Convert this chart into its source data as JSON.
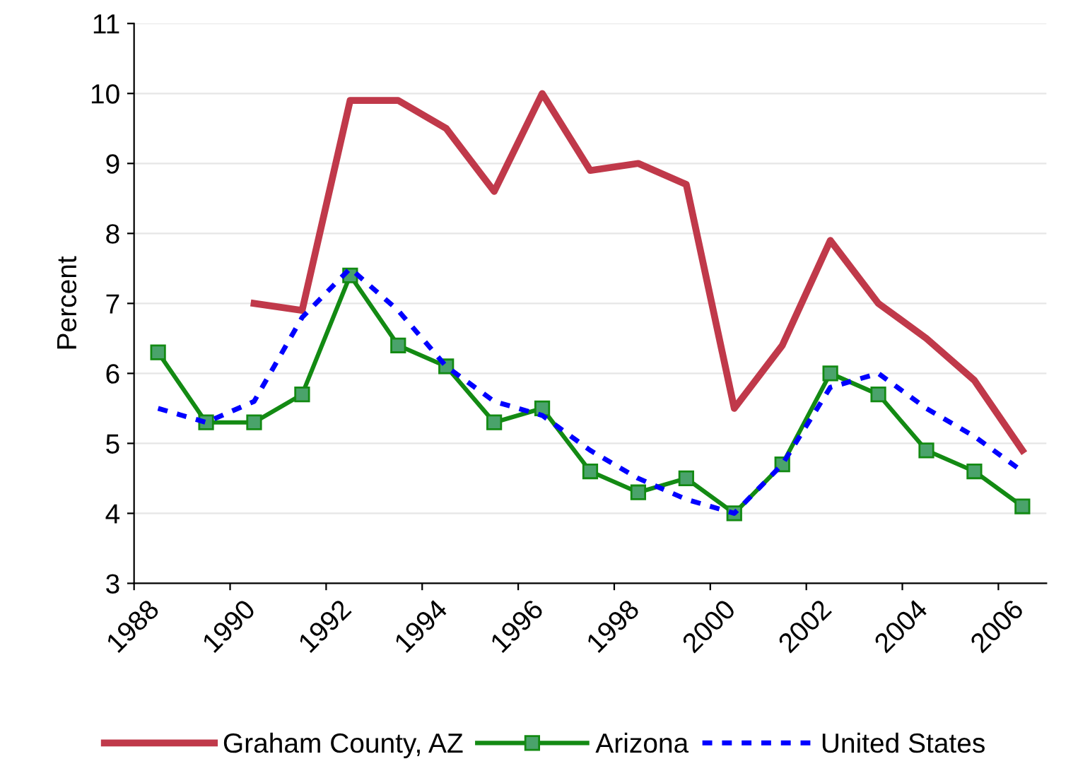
{
  "chart_data": {
    "type": "line",
    "ylabel": "Percent",
    "x": [
      1988.5,
      1989.5,
      1990.5,
      1991.5,
      1992.5,
      1993.5,
      1994.5,
      1995.5,
      1996.5,
      1997.5,
      1998.5,
      1999.5,
      2000.5,
      2001.5,
      2002.5,
      2003.5,
      2004.5,
      2005.5,
      2006.5
    ],
    "series": [
      {
        "name": "Graham County, AZ",
        "color": "#c0394a",
        "line_style": "solid",
        "marker": "none",
        "values": [
          null,
          null,
          7.0,
          6.9,
          9.9,
          9.9,
          9.5,
          8.6,
          10.0,
          8.9,
          9.0,
          8.7,
          5.5,
          6.4,
          7.9,
          7.0,
          6.5,
          5.9,
          4.9
        ]
      },
      {
        "name": "Arizona",
        "color": "#138a13",
        "line_style": "solid",
        "marker": "square",
        "values": [
          6.3,
          5.3,
          5.3,
          5.7,
          7.4,
          6.4,
          6.1,
          5.3,
          5.5,
          4.6,
          4.3,
          4.5,
          4.0,
          4.7,
          6.0,
          5.7,
          4.9,
          4.6,
          4.1
        ]
      },
      {
        "name": "United States",
        "color": "#0000ff",
        "line_style": "dashed",
        "marker": "none",
        "values": [
          5.5,
          5.3,
          5.6,
          6.8,
          7.5,
          6.9,
          6.1,
          5.6,
          5.4,
          4.9,
          4.5,
          4.2,
          4.0,
          4.7,
          5.8,
          6.0,
          5.5,
          5.1,
          4.6
        ]
      }
    ],
    "xlim": [
      1988,
      2007
    ],
    "xticks": [
      1988,
      1990,
      1992,
      1994,
      1996,
      1998,
      2000,
      2002,
      2004,
      2006
    ],
    "ylim": [
      3,
      11
    ],
    "yticks": [
      3,
      4,
      5,
      6,
      7,
      8,
      9,
      10,
      11
    ],
    "grid": "y",
    "legend": "bottom"
  }
}
